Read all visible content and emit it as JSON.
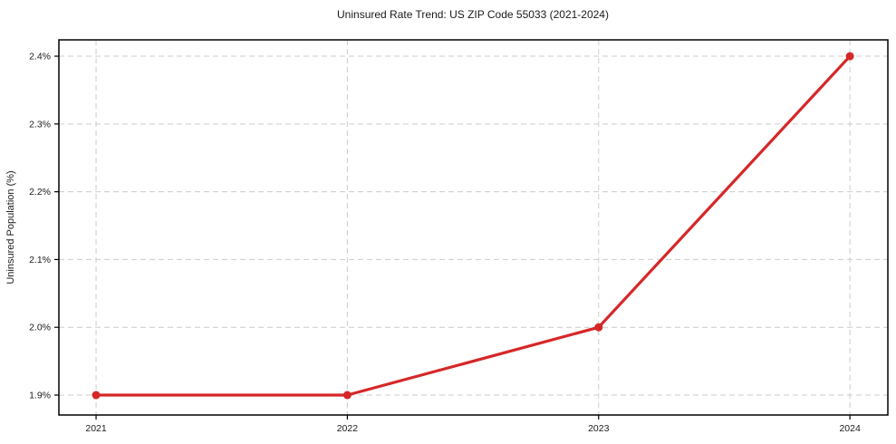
{
  "chart_data": {
    "type": "line",
    "title": "Uninsured Rate Trend: US ZIP Code 55033 (2021-2024)",
    "xlabel": "",
    "ylabel": "Uninsured Population (%)",
    "x": [
      2021,
      2022,
      2023,
      2024
    ],
    "values": [
      1.9,
      1.9,
      2.0,
      2.4
    ],
    "x_tick_labels": [
      "2021",
      "2022",
      "2023",
      "2024"
    ],
    "y_ticks": [
      1.9,
      2.0,
      2.1,
      2.2,
      2.3,
      2.4
    ],
    "y_tick_labels": [
      "1.9%",
      "2.0%",
      "2.1%",
      "2.2%",
      "2.3%",
      "2.4%"
    ],
    "xlim": [
      2020.852,
      2024.151
    ],
    "ylim": [
      1.8706,
      2.4241
    ],
    "grid": true,
    "grid_style": "dashed",
    "legend": "none",
    "line_color": "#d62728",
    "marker": "circle",
    "marker_color": "#d62728",
    "grid_color": "#cccccc",
    "spine_color": "#000000",
    "tick_color": "#1a1a1a",
    "background": "#ffffff"
  }
}
